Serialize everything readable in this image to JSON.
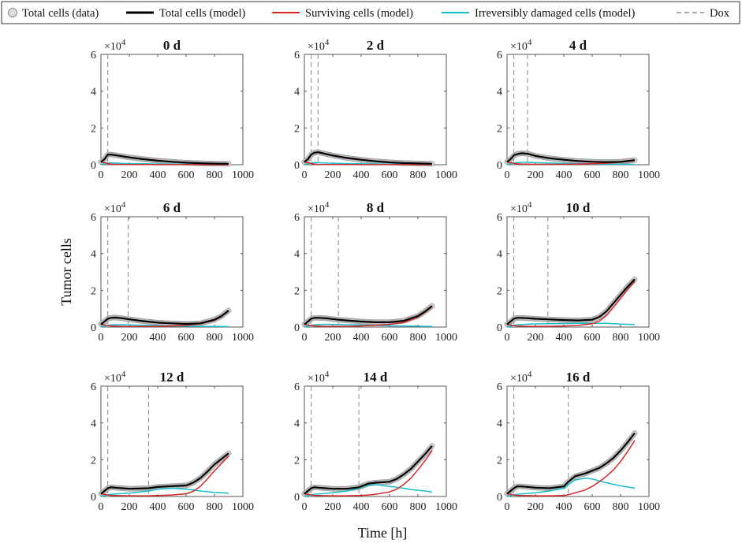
{
  "chart_data": {
    "type": "line",
    "xlabel": "Time [h]",
    "ylabel": "Tumor cells",
    "xlim": [
      0,
      1000
    ],
    "ylim": [
      0,
      6
    ],
    "y_scale_label": "×10",
    "y_scale_exponent": "4",
    "x_ticks": [
      "0",
      "200",
      "400",
      "600",
      "800",
      "1000"
    ],
    "y_ticks": [
      "0",
      "2",
      "4",
      "6"
    ],
    "legend": [
      {
        "key": "data",
        "label": "Total cells (data)",
        "color": "#aaaaaa",
        "style": "marker"
      },
      {
        "key": "total",
        "label": "Total cells (model)",
        "color": "#000000",
        "style": "line"
      },
      {
        "key": "surviving",
        "label": "Surviving cells (model)",
        "color": "#d62728",
        "style": "line"
      },
      {
        "key": "damaged",
        "label": "Irreversibly damaged cells (model)",
        "color": "#17becf",
        "style": "line"
      },
      {
        "key": "dox",
        "label": "Dox",
        "color": "#777777",
        "style": "dashed"
      }
    ],
    "panels": [
      {
        "title": "0 d",
        "dox": [
          48
        ],
        "x": [
          0,
          25,
          48,
          70,
          100,
          150,
          200,
          300,
          400,
          500,
          600,
          700,
          800,
          900
        ],
        "total": [
          0.15,
          0.3,
          0.55,
          0.55,
          0.52,
          0.46,
          0.4,
          0.3,
          0.22,
          0.16,
          0.11,
          0.08,
          0.06,
          0.05
        ],
        "surviving": [
          0.15,
          0.12,
          0.06,
          0.03,
          0.02,
          0.015,
          0.01,
          0.008,
          0.006,
          0.005,
          0.004,
          0.003,
          0.003,
          0.003
        ],
        "damaged": [
          0.0,
          0.05,
          0.1,
          0.1,
          0.09,
          0.07,
          0.06,
          0.05,
          0.04,
          0.03,
          0.03,
          0.02,
          0.02,
          0.02
        ]
      },
      {
        "title": "2 d",
        "dox": [
          48,
          96
        ],
        "x": [
          0,
          25,
          48,
          70,
          96,
          130,
          200,
          300,
          400,
          500,
          600,
          700,
          800,
          900
        ],
        "total": [
          0.15,
          0.3,
          0.55,
          0.65,
          0.68,
          0.62,
          0.5,
          0.37,
          0.27,
          0.19,
          0.13,
          0.09,
          0.07,
          0.05
        ],
        "surviving": [
          0.15,
          0.12,
          0.06,
          0.04,
          0.02,
          0.015,
          0.01,
          0.008,
          0.006,
          0.005,
          0.004,
          0.003,
          0.003,
          0.003
        ],
        "damaged": [
          0.0,
          0.05,
          0.1,
          0.11,
          0.12,
          0.1,
          0.08,
          0.06,
          0.05,
          0.04,
          0.03,
          0.02,
          0.02,
          0.02
        ]
      },
      {
        "title": "4 d",
        "dox": [
          48,
          144
        ],
        "x": [
          0,
          25,
          48,
          70,
          100,
          144,
          200,
          300,
          400,
          500,
          600,
          700,
          800,
          900
        ],
        "total": [
          0.15,
          0.3,
          0.5,
          0.58,
          0.62,
          0.6,
          0.48,
          0.35,
          0.27,
          0.2,
          0.16,
          0.14,
          0.16,
          0.25
        ],
        "surviving": [
          0.15,
          0.12,
          0.07,
          0.05,
          0.04,
          0.03,
          0.02,
          0.02,
          0.02,
          0.03,
          0.05,
          0.08,
          0.13,
          0.22
        ],
        "damaged": [
          0.0,
          0.05,
          0.1,
          0.12,
          0.13,
          0.13,
          0.11,
          0.09,
          0.07,
          0.05,
          0.04,
          0.03,
          0.03,
          0.02
        ]
      },
      {
        "title": "6 d",
        "dox": [
          48,
          192
        ],
        "x": [
          0,
          25,
          48,
          70,
          100,
          150,
          200,
          300,
          400,
          500,
          600,
          700,
          800,
          850,
          900
        ],
        "total": [
          0.15,
          0.3,
          0.45,
          0.5,
          0.52,
          0.48,
          0.42,
          0.32,
          0.24,
          0.2,
          0.17,
          0.2,
          0.4,
          0.6,
          0.9
        ],
        "surviving": [
          0.15,
          0.12,
          0.08,
          0.06,
          0.05,
          0.04,
          0.03,
          0.03,
          0.04,
          0.06,
          0.1,
          0.17,
          0.37,
          0.57,
          0.87
        ],
        "damaged": [
          0.0,
          0.05,
          0.1,
          0.12,
          0.13,
          0.13,
          0.12,
          0.1,
          0.08,
          0.06,
          0.05,
          0.04,
          0.03,
          0.03,
          0.02
        ]
      },
      {
        "title": "8 d",
        "dox": [
          48,
          240
        ],
        "x": [
          0,
          25,
          48,
          70,
          100,
          150,
          240,
          300,
          400,
          500,
          600,
          700,
          800,
          850,
          900
        ],
        "total": [
          0.15,
          0.3,
          0.45,
          0.5,
          0.5,
          0.48,
          0.4,
          0.36,
          0.3,
          0.26,
          0.26,
          0.34,
          0.6,
          0.85,
          1.15
        ],
        "surviving": [
          0.15,
          0.12,
          0.08,
          0.06,
          0.05,
          0.04,
          0.04,
          0.04,
          0.06,
          0.09,
          0.15,
          0.25,
          0.55,
          0.8,
          1.1
        ],
        "damaged": [
          0.0,
          0.05,
          0.1,
          0.12,
          0.14,
          0.15,
          0.14,
          0.13,
          0.11,
          0.09,
          0.07,
          0.06,
          0.05,
          0.04,
          0.04
        ]
      },
      {
        "title": "10 d",
        "dox": [
          48,
          288
        ],
        "x": [
          0,
          25,
          48,
          70,
          100,
          150,
          200,
          288,
          400,
          500,
          600,
          650,
          700,
          750,
          800,
          850,
          900
        ],
        "total": [
          0.15,
          0.3,
          0.45,
          0.5,
          0.5,
          0.48,
          0.45,
          0.42,
          0.38,
          0.36,
          0.4,
          0.55,
          0.85,
          1.3,
          1.75,
          2.2,
          2.6
        ],
        "surviving": [
          0.15,
          0.12,
          0.08,
          0.06,
          0.05,
          0.04,
          0.04,
          0.04,
          0.06,
          0.09,
          0.18,
          0.32,
          0.62,
          1.08,
          1.55,
          2.05,
          2.5
        ],
        "damaged": [
          0.0,
          0.05,
          0.1,
          0.12,
          0.14,
          0.16,
          0.17,
          0.18,
          0.19,
          0.2,
          0.2,
          0.2,
          0.2,
          0.18,
          0.16,
          0.15,
          0.14
        ]
      },
      {
        "title": "12 d",
        "dox": [
          48,
          336
        ],
        "x": [
          0,
          25,
          48,
          70,
          100,
          200,
          336,
          400,
          500,
          600,
          650,
          700,
          750,
          800,
          850,
          900
        ],
        "total": [
          0.15,
          0.3,
          0.45,
          0.5,
          0.48,
          0.42,
          0.45,
          0.52,
          0.56,
          0.6,
          0.75,
          1.0,
          1.35,
          1.75,
          2.05,
          2.35
        ],
        "surviving": [
          0.15,
          0.12,
          0.08,
          0.06,
          0.05,
          0.04,
          0.04,
          0.05,
          0.08,
          0.15,
          0.28,
          0.55,
          0.95,
          1.4,
          1.8,
          2.2
        ],
        "damaged": [
          0.0,
          0.05,
          0.1,
          0.12,
          0.14,
          0.18,
          0.3,
          0.4,
          0.45,
          0.4,
          0.35,
          0.3,
          0.26,
          0.22,
          0.2,
          0.18
        ]
      },
      {
        "title": "14 d",
        "dox": [
          48,
          384
        ],
        "x": [
          0,
          25,
          48,
          70,
          100,
          200,
          300,
          384,
          450,
          500,
          600,
          650,
          700,
          750,
          800,
          850,
          900
        ],
        "total": [
          0.15,
          0.3,
          0.45,
          0.5,
          0.48,
          0.42,
          0.42,
          0.5,
          0.7,
          0.75,
          0.8,
          0.95,
          1.2,
          1.5,
          1.9,
          2.3,
          2.75
        ],
        "surviving": [
          0.15,
          0.12,
          0.08,
          0.06,
          0.05,
          0.04,
          0.04,
          0.05,
          0.08,
          0.12,
          0.25,
          0.4,
          0.65,
          1.0,
          1.45,
          1.95,
          2.5
        ],
        "damaged": [
          0.0,
          0.05,
          0.1,
          0.12,
          0.14,
          0.2,
          0.3,
          0.45,
          0.62,
          0.65,
          0.55,
          0.5,
          0.45,
          0.38,
          0.34,
          0.3,
          0.25
        ]
      },
      {
        "title": "16 d",
        "dox": [
          48,
          432
        ],
        "x": [
          0,
          25,
          48,
          70,
          100,
          200,
          300,
          400,
          432,
          480,
          550,
          600,
          650,
          700,
          750,
          800,
          850,
          900
        ],
        "total": [
          0.15,
          0.3,
          0.45,
          0.55,
          0.55,
          0.48,
          0.45,
          0.55,
          0.8,
          1.1,
          1.25,
          1.4,
          1.55,
          1.8,
          2.1,
          2.5,
          2.95,
          3.45
        ],
        "surviving": [
          0.15,
          0.12,
          0.08,
          0.06,
          0.05,
          0.04,
          0.04,
          0.05,
          0.1,
          0.2,
          0.35,
          0.55,
          0.8,
          1.1,
          1.45,
          1.9,
          2.45,
          3.05
        ],
        "damaged": [
          0.0,
          0.05,
          0.1,
          0.12,
          0.14,
          0.2,
          0.3,
          0.45,
          0.65,
          0.9,
          1.0,
          0.95,
          0.85,
          0.75,
          0.66,
          0.58,
          0.52,
          0.45
        ]
      }
    ]
  }
}
